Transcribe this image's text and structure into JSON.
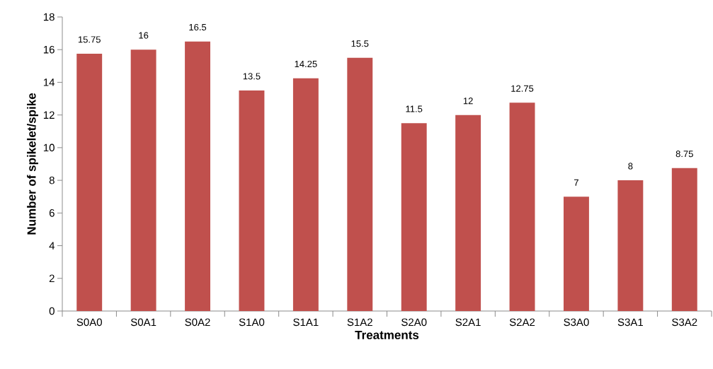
{
  "chart_data": {
    "type": "bar",
    "xlabel": "Treatments",
    "ylabel": "Number of spikelet/spike",
    "categories": [
      "S0A0",
      "S0A1",
      "S0A2",
      "S1A0",
      "S1A1",
      "S1A2",
      "S2A0",
      "S2A1",
      "S2A2",
      "S3A0",
      "S3A1",
      "S3A2"
    ],
    "values": [
      15.75,
      16,
      16.5,
      13.5,
      14.25,
      15.5,
      11.5,
      12,
      12.75,
      7,
      8,
      8.75
    ],
    "color": "#c0504d",
    "ylim": [
      0,
      18
    ],
    "yticks": [
      0,
      2,
      4,
      6,
      8,
      10,
      12,
      14,
      16,
      18
    ],
    "data_labels": true
  }
}
